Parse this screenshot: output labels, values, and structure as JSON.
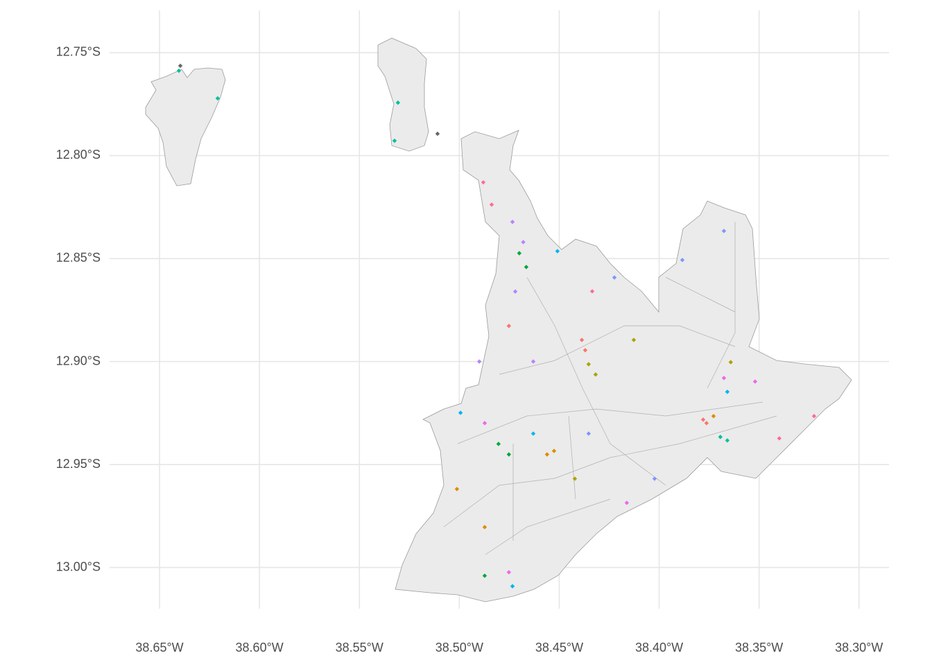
{
  "chart_data": {
    "type": "map",
    "xlim": [
      -38.675,
      -38.285
    ],
    "ylim": [
      -13.02,
      -12.7295
    ],
    "xticks": [
      {
        "value": -38.65,
        "label": "38.65°W"
      },
      {
        "value": -38.6,
        "label": "38.60°W"
      },
      {
        "value": -38.55,
        "label": "38.55°W"
      },
      {
        "value": -38.5,
        "label": "38.50°W"
      },
      {
        "value": -38.45,
        "label": "38.45°W"
      },
      {
        "value": -38.4,
        "label": "38.40°W"
      },
      {
        "value": -38.35,
        "label": "38.35°W"
      },
      {
        "value": -38.3,
        "label": "38.30°W"
      }
    ],
    "yticks": [
      {
        "value": -12.75,
        "label": "12.75°S"
      },
      {
        "value": -12.8,
        "label": "12.80°S"
      },
      {
        "value": -12.85,
        "label": "12.85°S"
      },
      {
        "value": -12.9,
        "label": "12.90°S"
      },
      {
        "value": -12.95,
        "label": "12.95°S"
      },
      {
        "value": -13.0,
        "label": "13.00°S"
      }
    ],
    "grid": true,
    "series": [
      {
        "color": "#f8766d",
        "x": [
          -38.4387,
          -38.437,
          -38.378,
          -38.3763,
          -38.4752
        ],
        "y": [
          -12.8895,
          -12.8945,
          -12.9282,
          -12.9299,
          -12.8827
        ]
      },
      {
        "color": "#db8e00",
        "x": [
          -38.4561,
          -38.4526,
          -38.5012,
          -38.4873,
          -38.3728
        ],
        "y": [
          -12.9451,
          -12.9434,
          -12.9619,
          -12.9804,
          -12.9265
        ]
      },
      {
        "color": "#aea200",
        "x": [
          -38.4353,
          -38.4318,
          -38.4127,
          -38.3642,
          -38.4422
        ],
        "y": [
          -12.9013,
          -12.9063,
          -12.8895,
          -12.9003,
          -12.9569
        ]
      },
      {
        "color": "#00a83e",
        "x": [
          -38.47,
          -38.4665,
          -38.4804,
          -38.4752,
          -38.4873
        ],
        "y": [
          -12.8474,
          -12.8541,
          -12.94,
          -12.9451,
          -13.004
        ]
      },
      {
        "color": "#00bfa0",
        "x": [
          -38.5307,
          -38.5324,
          -38.6403,
          -38.6209,
          -38.3694,
          -38.3659
        ],
        "y": [
          -12.7743,
          -12.7928,
          -12.7588,
          -12.7722,
          -12.9366,
          -12.9383
        ]
      },
      {
        "color": "#00b4ef",
        "x": [
          -38.4509,
          -38.463,
          -38.3659,
          -38.4994,
          -38.4734
        ],
        "y": [
          -12.8464,
          -12.935,
          -12.9147,
          -12.9249,
          -13.0091
        ]
      },
      {
        "color": "#7f96ff",
        "x": [
          -38.4224,
          -38.4353,
          -38.3884,
          -38.3676,
          -38.4023
        ],
        "y": [
          -12.8592,
          -12.935,
          -12.8507,
          -12.8366,
          -12.9569
        ]
      },
      {
        "color": "#b983ff",
        "x": [
          -38.4734,
          -38.468,
          -38.472,
          -38.463,
          -38.49
        ],
        "y": [
          -12.8322,
          -12.842,
          -12.866,
          -12.9,
          -12.9
        ]
      },
      {
        "color": "#ef67eb",
        "x": [
          -38.4873,
          -38.3676,
          -38.352,
          -38.4162,
          -38.4752
        ],
        "y": [
          -12.9299,
          -12.908,
          -12.9097,
          -12.9686,
          -13.0023
        ]
      },
      {
        "color": "#ff6c91",
        "x": [
          -38.488,
          -38.4838,
          -38.4335,
          -38.3225,
          -38.3399
        ],
        "y": [
          -12.813,
          -12.8238,
          -12.8659,
          -12.9265,
          -12.9373
        ]
      },
      {
        "color": "#666666",
        "x": [
          -38.6396,
          -38.5109
        ],
        "y": [
          -12.7564,
          -12.7894
        ]
      }
    ]
  }
}
